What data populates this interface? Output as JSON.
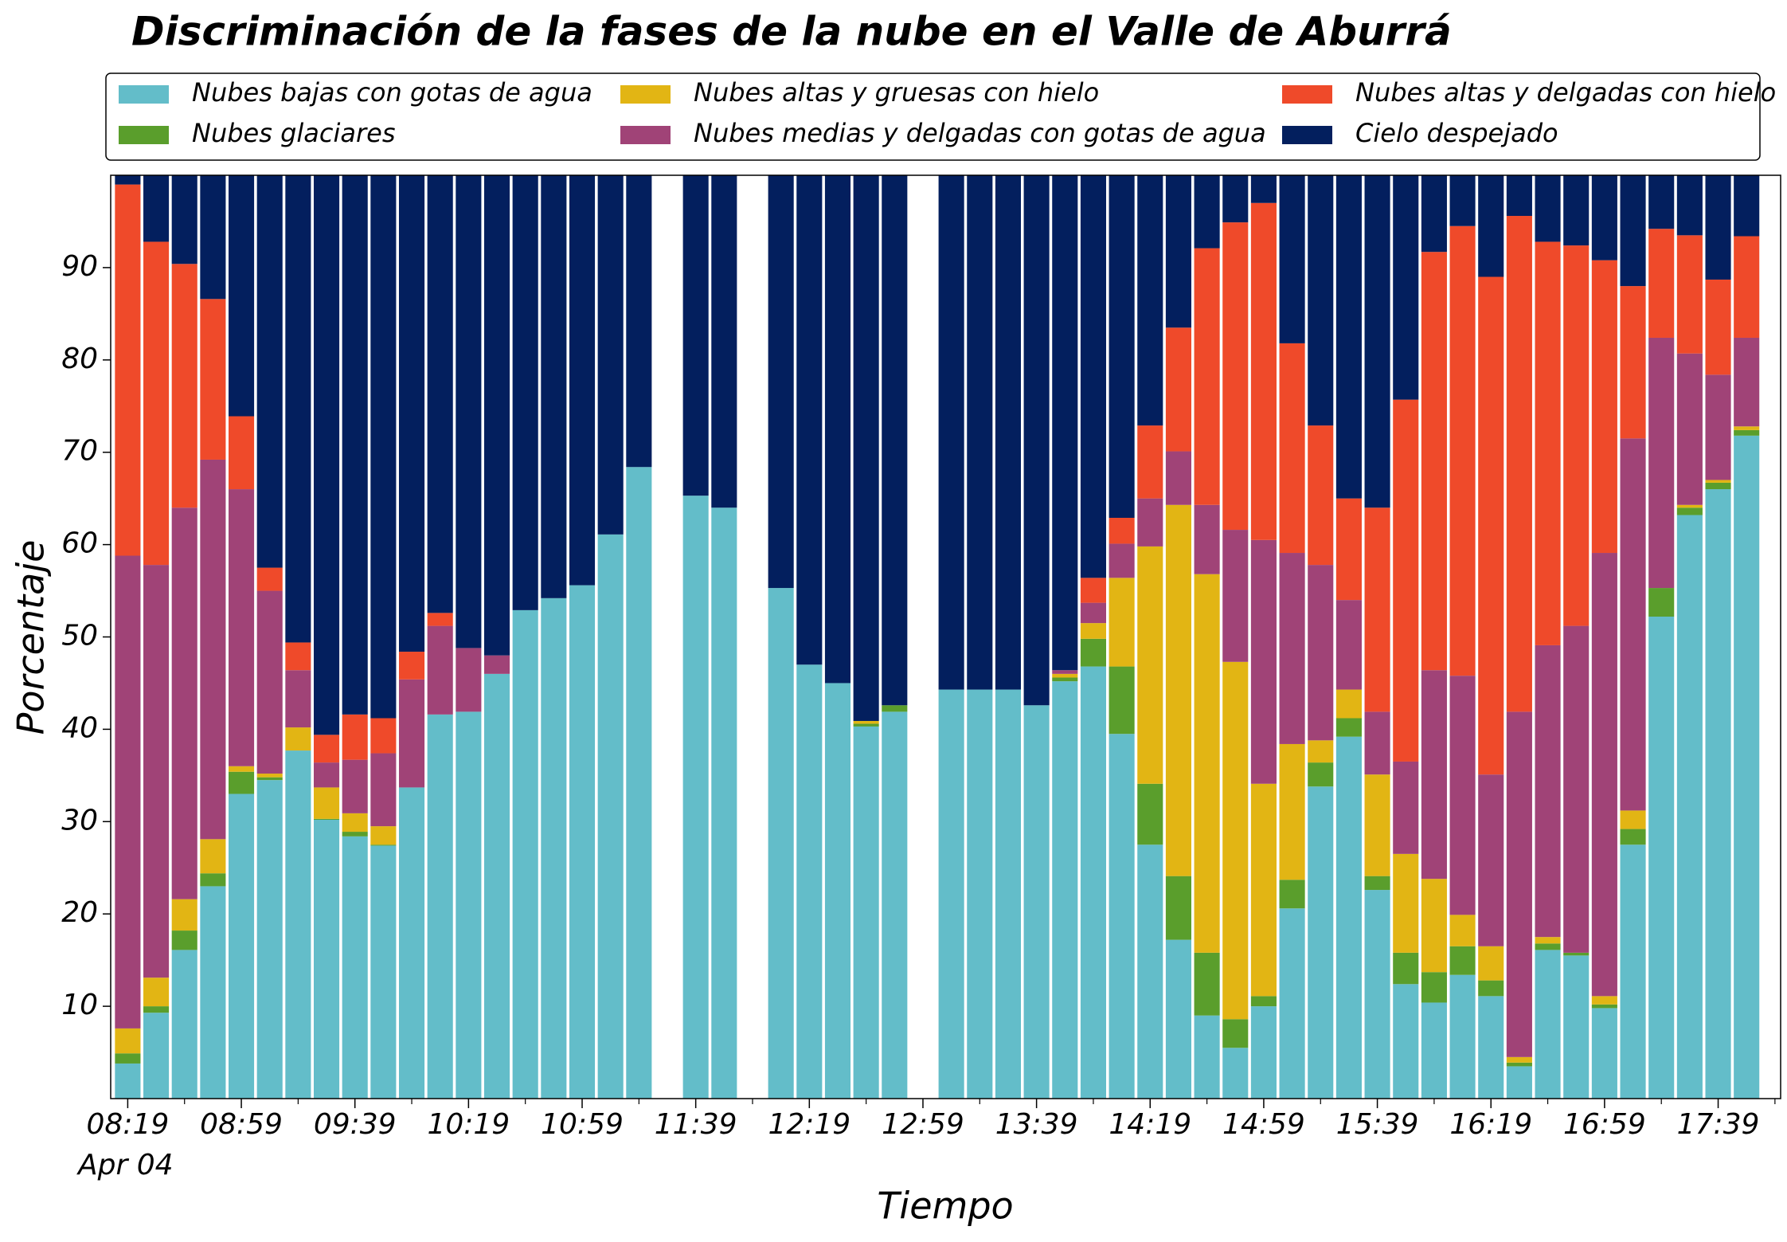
{
  "chart_data": {
    "type": "stacked_bar",
    "title": "Discriminación de la fases de la nube en el Valle de Aburrá",
    "xlabel": "Tiempo",
    "ylabel": "Porcentaje",
    "x_date_label": "Apr 04",
    "categories": [
      "08:19",
      null,
      null,
      null,
      "08:59",
      null,
      null,
      null,
      "09:39",
      null,
      null,
      null,
      "10:19",
      null,
      null,
      null,
      "10:59",
      null,
      null,
      null,
      "11:39",
      null,
      null,
      null,
      "12:19",
      null,
      null,
      null,
      "12:59",
      null,
      null,
      null,
      "13:39",
      null,
      null,
      null,
      "14:19",
      null,
      null,
      null,
      "14:59",
      null,
      null,
      null,
      "15:39",
      null,
      null,
      null,
      "16:19",
      null,
      null,
      null,
      "16:59",
      null,
      null,
      null,
      "17:39",
      null
    ],
    "ylim": [
      0,
      100
    ],
    "yticks": [
      10,
      20,
      30,
      40,
      50,
      60,
      70,
      80,
      90
    ],
    "series": [
      {
        "name": "Nubes bajas con gotas de agua",
        "color": "#63bdc9",
        "values": [
          3.8,
          9.3,
          16.1,
          23.0,
          33.0,
          34.5,
          37.7,
          30.2,
          28.4,
          27.4,
          33.7,
          41.6,
          41.9,
          46.0,
          52.9,
          54.2,
          55.6,
          61.1,
          68.4,
          null,
          65.3,
          64.0,
          null,
          55.3,
          47.0,
          45.0,
          40.3,
          41.9,
          null,
          44.3,
          44.3,
          44.3,
          42.6,
          45.2,
          46.8,
          39.5,
          27.5,
          17.2,
          9.0,
          5.5,
          10.0,
          20.6,
          33.8,
          39.2,
          22.6,
          12.4,
          10.4,
          13.4,
          11.1,
          3.5,
          16.1,
          15.5,
          9.8,
          27.5,
          52.2,
          63.2,
          66.0,
          71.8
        ]
      },
      {
        "name": "Nubes glaciares",
        "color": "#5a9e2c",
        "values": [
          1.1,
          0.7,
          2.1,
          1.4,
          2.4,
          0.3,
          0,
          0.1,
          0.5,
          0.1,
          0,
          0,
          0,
          0,
          0,
          0,
          0,
          0,
          0,
          null,
          0,
          0,
          null,
          0,
          0,
          0,
          0.3,
          0.7,
          null,
          0,
          0,
          0,
          0,
          0.4,
          3.0,
          7.3,
          6.6,
          6.9,
          6.8,
          3.1,
          1.1,
          3.1,
          2.6,
          2.0,
          1.5,
          3.4,
          3.3,
          3.1,
          1.7,
          0.4,
          0.7,
          0.3,
          0.4,
          1.7,
          3.1,
          0.8,
          0.7,
          0.6
        ]
      },
      {
        "name": "Nubes altas y gruesas con hielo",
        "color": "#e2b514",
        "values": [
          2.7,
          3.1,
          3.4,
          3.7,
          0.6,
          0.4,
          2.5,
          3.4,
          2.0,
          2.0,
          0,
          0,
          0,
          0,
          0,
          0,
          0,
          0,
          0,
          null,
          0,
          0,
          null,
          0,
          0,
          0,
          0.3,
          0,
          null,
          0,
          0,
          0,
          0,
          0.4,
          1.7,
          9.6,
          25.7,
          40.2,
          41.0,
          38.7,
          23.0,
          14.7,
          2.4,
          3.1,
          11.0,
          10.7,
          10.1,
          3.4,
          3.7,
          0.6,
          0.7,
          0,
          0.9,
          2.0,
          0,
          0.3,
          0.3,
          0.4
        ]
      },
      {
        "name": "Nubes medias y delgadas con gotas de agua",
        "color": "#a04377",
        "values": [
          51.2,
          44.7,
          42.4,
          41.1,
          30.0,
          19.8,
          6.2,
          2.7,
          5.8,
          7.9,
          11.7,
          9.6,
          6.9,
          2.0,
          0,
          0,
          0,
          0,
          0,
          null,
          0,
          0,
          null,
          0,
          0,
          0,
          0,
          0,
          null,
          0,
          0,
          0,
          0,
          0.4,
          2.2,
          3.7,
          5.2,
          5.8,
          7.5,
          14.3,
          26.4,
          20.7,
          19.0,
          9.7,
          6.8,
          10.0,
          22.6,
          25.9,
          18.6,
          37.4,
          31.6,
          35.4,
          48.0,
          40.3,
          27.1,
          16.4,
          11.4,
          9.6
        ]
      },
      {
        "name": "Nubes altas y delgadas con hielo",
        "color": "#ef4a2a",
        "values": [
          40.2,
          35.0,
          26.4,
          17.4,
          7.9,
          2.5,
          3.0,
          3.0,
          4.9,
          3.8,
          3.0,
          1.4,
          0,
          0,
          0,
          0,
          0,
          0,
          0,
          null,
          0,
          0,
          null,
          0,
          0,
          0,
          0,
          0,
          null,
          0,
          0,
          0,
          0,
          0,
          2.7,
          2.8,
          7.9,
          13.4,
          27.8,
          33.3,
          36.5,
          22.7,
          15.1,
          11.0,
          22.1,
          39.2,
          45.3,
          48.7,
          53.9,
          53.7,
          43.7,
          41.2,
          31.7,
          16.5,
          11.8,
          12.8,
          10.3,
          11.0
        ]
      },
      {
        "name": "Cielo despejado",
        "color": "#031f5e",
        "values": [
          1.0,
          7.2,
          9.6,
          13.4,
          26.1,
          42.5,
          50.6,
          60.6,
          58.4,
          58.8,
          51.6,
          47.4,
          51.2,
          52.0,
          47.1,
          45.8,
          44.4,
          38.9,
          31.6,
          null,
          34.7,
          36.0,
          null,
          44.7,
          53.0,
          55.0,
          59.1,
          57.4,
          null,
          55.7,
          55.7,
          55.7,
          57.4,
          53.6,
          43.6,
          37.1,
          27.1,
          16.5,
          7.9,
          5.1,
          3.0,
          18.2,
          27.1,
          35.0,
          36.0,
          24.3,
          8.3,
          5.5,
          11.0,
          4.4,
          7.2,
          7.6,
          9.2,
          12.0,
          5.8,
          6.5,
          11.3,
          6.6
        ]
      }
    ]
  }
}
